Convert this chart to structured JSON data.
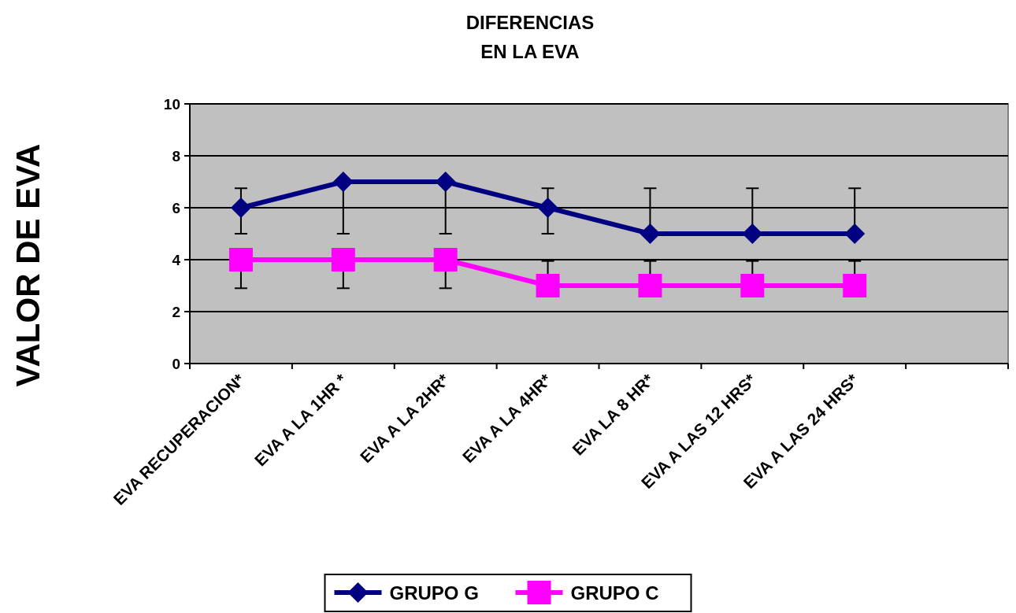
{
  "chart_data": {
    "type": "line",
    "title": "DIFERENCIAS\nEN LA EVA",
    "ylabel": "VALOR DE EVA",
    "categories": [
      "EVA RECUPERACION*",
      "EVA A LA 1HR *",
      "EVA A LA 2HR*",
      "EVA A LA 4HR*",
      "EVA LA 8 HR*",
      "EVA A LAS 12 HRS*",
      "EVA A LAS 24 HRS*",
      null
    ],
    "series": [
      {
        "name": "GRUPO G",
        "color": "#000080",
        "marker": "diamond",
        "values": [
          6,
          7,
          7,
          6,
          5,
          5,
          5,
          null
        ],
        "errors": [
          [
            5,
            6.75
          ],
          [
            5,
            7
          ],
          [
            5,
            7
          ],
          [
            5,
            6.75
          ],
          [
            5,
            6.75
          ],
          [
            5,
            6.75
          ],
          [
            5,
            6.75
          ],
          null
        ]
      },
      {
        "name": "GRUPO C",
        "color": "#ff00ff",
        "marker": "square",
        "values": [
          4,
          4,
          4,
          3,
          3,
          3,
          3,
          null
        ],
        "errors": [
          [
            2.9,
            4
          ],
          [
            2.9,
            4
          ],
          [
            2.9,
            4
          ],
          [
            3,
            3.95
          ],
          [
            3,
            3.95
          ],
          [
            3,
            3.95
          ],
          [
            3,
            3.95
          ],
          null
        ]
      }
    ],
    "ylim": [
      0,
      10
    ],
    "yticks": [
      0,
      2,
      4,
      6,
      8,
      10
    ],
    "grid": "y",
    "legend": "bottom"
  }
}
